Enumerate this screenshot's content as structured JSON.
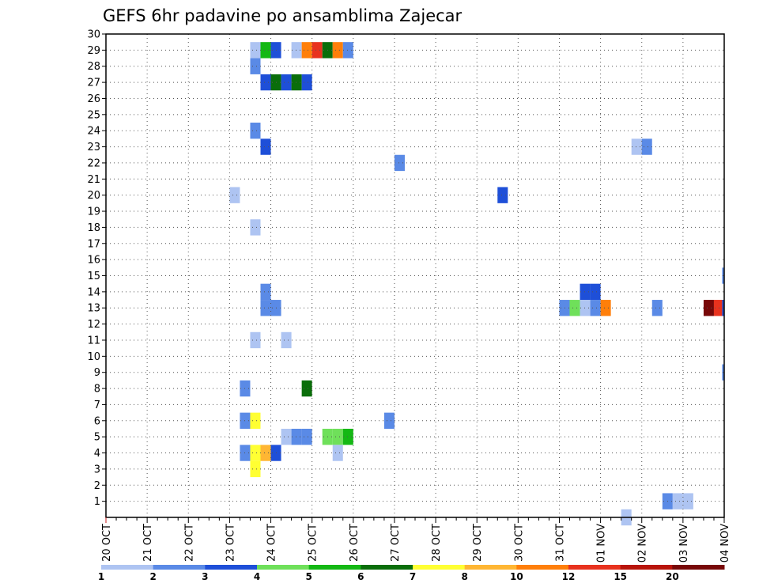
{
  "chart_data": {
    "type": "heatmap",
    "title": "GEFS 6hr padavine po ansamblima Zajecar",
    "xlabel": "",
    "ylabel": "",
    "x_ticks": [
      "20 OCT",
      "21 OCT",
      "22 OCT",
      "23 OCT",
      "24 OCT",
      "25 OCT",
      "26 OCT",
      "27 OCT",
      "28 OCT",
      "29 OCT",
      "30 OCT",
      "31 OCT",
      "01 NOV",
      "02 NOV",
      "03 NOV",
      "04 NOV"
    ],
    "y_ticks": [
      1,
      2,
      3,
      4,
      5,
      6,
      7,
      8,
      9,
      10,
      11,
      12,
      13,
      14,
      15,
      16,
      17,
      18,
      19,
      20,
      21,
      22,
      23,
      24,
      25,
      26,
      27,
      28,
      29,
      30
    ],
    "x_range_days": [
      0,
      15
    ],
    "y_range": [
      0,
      30
    ],
    "grid": true,
    "colorbar": {
      "labels": [
        "1",
        "2",
        "3",
        "4",
        "5",
        "6",
        "7",
        "8",
        "10",
        "12",
        "15",
        "20"
      ],
      "colors": [
        "#aec4f2",
        "#5a8ae6",
        "#1e4fd8",
        "#6fe05a",
        "#14b814",
        "#0a6e0a",
        "#ffff33",
        "#ffb633",
        "#ff7f0a",
        "#e8321e",
        "#b8140a",
        "#780808"
      ]
    },
    "note_cells": "Each cell: member (y), time in days since 20 OCT 00Z (t, 6-hour steps), precipitation class (c = index into colorbar colors)",
    "cells": [
      {
        "m": 29,
        "t": 3.5,
        "c": 0
      },
      {
        "m": 29,
        "t": 3.75,
        "c": 4
      },
      {
        "m": 29,
        "t": 4.0,
        "c": 2
      },
      {
        "m": 29,
        "t": 4.5,
        "c": 0
      },
      {
        "m": 29,
        "t": 4.75,
        "c": 8
      },
      {
        "m": 29,
        "t": 5.0,
        "c": 9
      },
      {
        "m": 29,
        "t": 5.25,
        "c": 5
      },
      {
        "m": 29,
        "t": 5.5,
        "c": 8
      },
      {
        "m": 29,
        "t": 5.75,
        "c": 1
      },
      {
        "m": 28,
        "t": 3.5,
        "c": 1
      },
      {
        "m": 27,
        "t": 3.75,
        "c": 2
      },
      {
        "m": 27,
        "t": 4.0,
        "c": 5
      },
      {
        "m": 27,
        "t": 4.25,
        "c": 2
      },
      {
        "m": 27,
        "t": 4.5,
        "c": 5
      },
      {
        "m": 27,
        "t": 4.75,
        "c": 2
      },
      {
        "m": 24,
        "t": 3.5,
        "c": 1
      },
      {
        "m": 23,
        "t": 3.75,
        "c": 2
      },
      {
        "m": 23,
        "t": 12.75,
        "c": 0
      },
      {
        "m": 23,
        "t": 13.0,
        "c": 1
      },
      {
        "m": 22,
        "t": 7.0,
        "c": 1
      },
      {
        "m": 20,
        "t": 3.0,
        "c": 0
      },
      {
        "m": 20,
        "t": 9.5,
        "c": 2
      },
      {
        "m": 18,
        "t": 3.5,
        "c": 0
      },
      {
        "m": 15,
        "t": 14.95,
        "c": 1
      },
      {
        "m": 14,
        "t": 3.75,
        "c": 1
      },
      {
        "m": 14,
        "t": 11.5,
        "c": 2
      },
      {
        "m": 14,
        "t": 11.75,
        "c": 2
      },
      {
        "m": 13,
        "t": 3.75,
        "c": 1
      },
      {
        "m": 13,
        "t": 4.0,
        "c": 1
      },
      {
        "m": 13,
        "t": 11.0,
        "c": 1
      },
      {
        "m": 13,
        "t": 11.25,
        "c": 3
      },
      {
        "m": 13,
        "t": 11.5,
        "c": 0
      },
      {
        "m": 13,
        "t": 11.75,
        "c": 1
      },
      {
        "m": 13,
        "t": 12.0,
        "c": 8
      },
      {
        "m": 13,
        "t": 13.25,
        "c": 1
      },
      {
        "m": 13,
        "t": 14.5,
        "c": 11
      },
      {
        "m": 13,
        "t": 14.75,
        "c": 9
      },
      {
        "m": 13,
        "t": 14.95,
        "c": 2
      },
      {
        "m": 11,
        "t": 3.5,
        "c": 0
      },
      {
        "m": 11,
        "t": 4.25,
        "c": 0
      },
      {
        "m": 9,
        "t": 14.95,
        "c": 1
      },
      {
        "m": 8,
        "t": 3.25,
        "c": 1
      },
      {
        "m": 8,
        "t": 4.75,
        "c": 5
      },
      {
        "m": 6,
        "t": 3.25,
        "c": 1
      },
      {
        "m": 6,
        "t": 3.5,
        "c": 6
      },
      {
        "m": 6,
        "t": 6.75,
        "c": 1
      },
      {
        "m": 5,
        "t": 4.25,
        "c": 0
      },
      {
        "m": 5,
        "t": 4.5,
        "c": 1
      },
      {
        "m": 5,
        "t": 4.75,
        "c": 1
      },
      {
        "m": 5,
        "t": 5.25,
        "c": 3
      },
      {
        "m": 5,
        "t": 5.5,
        "c": 3
      },
      {
        "m": 5,
        "t": 5.75,
        "c": 4
      },
      {
        "m": 4,
        "t": 3.25,
        "c": 1
      },
      {
        "m": 4,
        "t": 3.5,
        "c": 6
      },
      {
        "m": 4,
        "t": 3.75,
        "c": 7
      },
      {
        "m": 4,
        "t": 4.0,
        "c": 2
      },
      {
        "m": 4,
        "t": 5.5,
        "c": 0
      },
      {
        "m": 3,
        "t": 3.5,
        "c": 6
      },
      {
        "m": 1,
        "t": 13.5,
        "c": 1
      },
      {
        "m": 1,
        "t": 13.75,
        "c": 0
      },
      {
        "m": 1,
        "t": 14.0,
        "c": 0
      },
      {
        "m": 0,
        "t": 12.5,
        "c": 0
      }
    ]
  }
}
